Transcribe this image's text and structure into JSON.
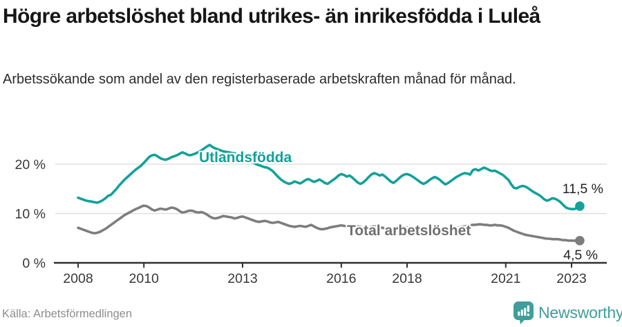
{
  "header": {
    "title": "Högre arbetslöshet bland utrikes- än inrikesfödda i Luleå",
    "title_lines": [
      "Högre arbetslöshet bland utrikes- än inrikesfödda i Luleå"
    ],
    "subtitle": "Arbetssökande som andel av den registerbaserade arbetskraften månad för månad."
  },
  "footer": {
    "source": "Källa: Arbetsförmedlingen",
    "brand_name": "Newsworthy",
    "brand_icon": "newsworthy-chart-bubble-icon"
  },
  "colors": {
    "accent_teal": "#12a19a",
    "series_gray": "#7d7d7d",
    "label_gray": "#6f6f6f",
    "brand_teal": "#3f9e99",
    "axis": "#2f2f2f",
    "grid": "#e0e0e0",
    "text_dark": "#161616"
  },
  "chart_data": {
    "type": "line",
    "title": "Högre arbetslöshet bland utrikes- än inrikesfödda i Luleå",
    "subtitle": "Arbetssökande som andel av den registerbaserade arbetskraften månad för månad.",
    "xlabel": "",
    "ylabel": "",
    "grid": true,
    "legend_position": "inline-labels-on-lines",
    "x_unit": "month",
    "x_start": "2008-01",
    "x_end": "2023-04",
    "x_ticks": [
      2008,
      2010,
      2013,
      2016,
      2018,
      2021,
      2023
    ],
    "y_ticks": [
      {
        "value": 0,
        "label": "0 %"
      },
      {
        "value": 10,
        "label": "10 %"
      },
      {
        "value": 20,
        "label": "20 %"
      }
    ],
    "ylim": [
      0,
      25.5
    ],
    "series": [
      {
        "name": "Utlandsfödda",
        "color": "#12a19a",
        "end_label": "11,5 %",
        "end_value": 11.5,
        "values": [
          13.2,
          13.0,
          12.8,
          12.6,
          12.5,
          12.4,
          12.3,
          12.2,
          12.4,
          12.7,
          13.1,
          13.6,
          13.8,
          14.4,
          15.0,
          15.7,
          16.3,
          16.9,
          17.4,
          17.9,
          18.4,
          18.9,
          19.3,
          19.7,
          20.3,
          20.9,
          21.5,
          21.8,
          21.9,
          21.6,
          21.2,
          21.0,
          20.9,
          21.1,
          21.4,
          21.6,
          21.8,
          22.1,
          22.4,
          22.2,
          21.9,
          21.8,
          22.0,
          22.2,
          22.5,
          22.8,
          23.2,
          23.6,
          23.9,
          23.5,
          23.2,
          23.0,
          22.8,
          22.6,
          22.5,
          22.4,
          22.3,
          22.2,
          22.0,
          21.8,
          21.5,
          21.2,
          20.9,
          20.6,
          20.3,
          20.0,
          19.8,
          19.6,
          19.4,
          19.3,
          19.0,
          18.6,
          18.0,
          17.4,
          16.9,
          16.5,
          16.2,
          16.0,
          16.2,
          16.5,
          16.3,
          16.1,
          16.4,
          16.8,
          17.0,
          16.7,
          16.4,
          16.6,
          16.9,
          16.6,
          16.2,
          16.0,
          16.4,
          16.8,
          17.2,
          17.7,
          18.0,
          17.8,
          17.5,
          17.7,
          17.3,
          16.8,
          16.3,
          16.0,
          16.3,
          16.8,
          17.4,
          17.9,
          18.2,
          18.0,
          17.7,
          17.9,
          17.5,
          17.0,
          16.5,
          16.2,
          16.6,
          17.1,
          17.6,
          17.9,
          18.0,
          17.8,
          17.5,
          17.1,
          16.7,
          16.3,
          16.0,
          16.3,
          16.7,
          17.1,
          17.4,
          17.2,
          16.8,
          16.3,
          15.9,
          16.2,
          16.6,
          17.0,
          17.4,
          17.7,
          18.0,
          18.2,
          18.1,
          17.9,
          18.8,
          19.0,
          18.7,
          19.0,
          19.3,
          19.1,
          18.8,
          18.6,
          18.7,
          18.4,
          18.1,
          17.8,
          17.3,
          16.8,
          15.9,
          15.2,
          15.1,
          15.4,
          15.6,
          15.5,
          15.2,
          14.8,
          14.4,
          14.1,
          13.8,
          13.4,
          12.9,
          12.6,
          12.8,
          13.1,
          13.0,
          12.7,
          12.3,
          11.7,
          11.2,
          11.0,
          10.9,
          10.9,
          11.1,
          11.5
        ]
      },
      {
        "name": "Total arbetslöshet",
        "color": "#7d7d7d",
        "end_label": "4,5 %",
        "end_value": 4.5,
        "values": [
          7.1,
          6.9,
          6.7,
          6.5,
          6.3,
          6.1,
          6.0,
          6.1,
          6.3,
          6.6,
          6.9,
          7.3,
          7.7,
          8.1,
          8.5,
          8.9,
          9.3,
          9.7,
          10.0,
          10.3,
          10.6,
          10.9,
          11.1,
          11.4,
          11.6,
          11.5,
          11.2,
          10.8,
          10.6,
          10.8,
          11.0,
          10.9,
          10.8,
          11.0,
          11.2,
          11.1,
          10.9,
          10.5,
          10.2,
          10.3,
          10.5,
          10.6,
          10.5,
          10.3,
          10.2,
          10.3,
          10.1,
          9.8,
          9.4,
          9.1,
          9.0,
          9.1,
          9.3,
          9.5,
          9.4,
          9.3,
          9.2,
          9.0,
          9.1,
          9.3,
          9.4,
          9.2,
          9.0,
          8.8,
          8.6,
          8.4,
          8.3,
          8.4,
          8.5,
          8.4,
          8.2,
          8.1,
          8.2,
          8.3,
          8.1,
          7.9,
          7.7,
          7.5,
          7.4,
          7.3,
          7.4,
          7.5,
          7.4,
          7.3,
          7.5,
          7.7,
          7.4,
          7.1,
          6.9,
          6.8,
          6.9,
          7.0,
          7.2,
          7.3,
          7.4,
          7.5,
          7.6,
          7.5,
          7.4,
          7.3,
          7.2,
          7.3,
          7.4,
          7.3,
          7.2,
          7.1,
          7.2,
          7.3,
          7.4,
          7.3,
          7.2,
          7.1,
          7.0,
          7.0,
          7.1,
          7.2,
          7.2,
          7.3,
          7.3,
          7.2,
          7.2,
          7.1,
          7.0,
          6.9,
          6.8,
          6.8,
          6.9,
          7.0,
          7.0,
          7.1,
          7.1,
          7.0,
          7.0,
          6.9,
          6.9,
          6.8,
          6.9,
          7.0,
          7.1,
          7.2,
          7.3,
          7.4,
          7.5,
          7.6,
          7.7,
          7.7,
          7.8,
          7.8,
          7.7,
          7.7,
          7.6,
          7.6,
          7.7,
          7.6,
          7.6,
          7.5,
          7.3,
          7.1,
          6.8,
          6.5,
          6.3,
          6.1,
          5.9,
          5.7,
          5.6,
          5.5,
          5.4,
          5.3,
          5.2,
          5.1,
          5.0,
          4.9,
          4.9,
          4.8,
          4.8,
          4.8,
          4.7,
          4.6,
          4.6,
          4.5,
          4.5,
          4.5,
          4.4,
          4.5
        ]
      }
    ]
  }
}
